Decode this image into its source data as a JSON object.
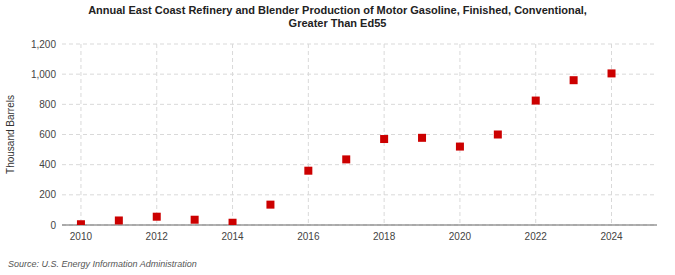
{
  "chart_data": {
    "type": "scatter",
    "title": "Annual East Coast Refinery and Blender Production of Motor Gasoline, Finished, Conventional,\nGreater Than Ed55",
    "y_label": "Thousand Barrels",
    "annotations": [
      "Source: U.S. Energy Information Administration"
    ],
    "x": [
      2010,
      2011,
      2012,
      2013,
      2014,
      2015,
      2016,
      2017,
      2018,
      2019,
      2020,
      2021,
      2022,
      2023,
      2024
    ],
    "values": [
      5,
      30,
      55,
      35,
      15,
      135,
      360,
      435,
      570,
      578,
      520,
      600,
      825,
      960,
      1005
    ],
    "color": "#cc0000",
    "marker": "square",
    "xlim": [
      2009.5,
      2025.2
    ],
    "xticks": [
      2010,
      2012,
      2014,
      2016,
      2018,
      2020,
      2022,
      2024
    ],
    "ylim": [
      0,
      1200
    ],
    "yticks": [
      0,
      200,
      400,
      600,
      800,
      {
        "value": 1000,
        "label": "1,000"
      },
      {
        "value": 1200,
        "label": "1,200"
      }
    ],
    "grid": true
  }
}
